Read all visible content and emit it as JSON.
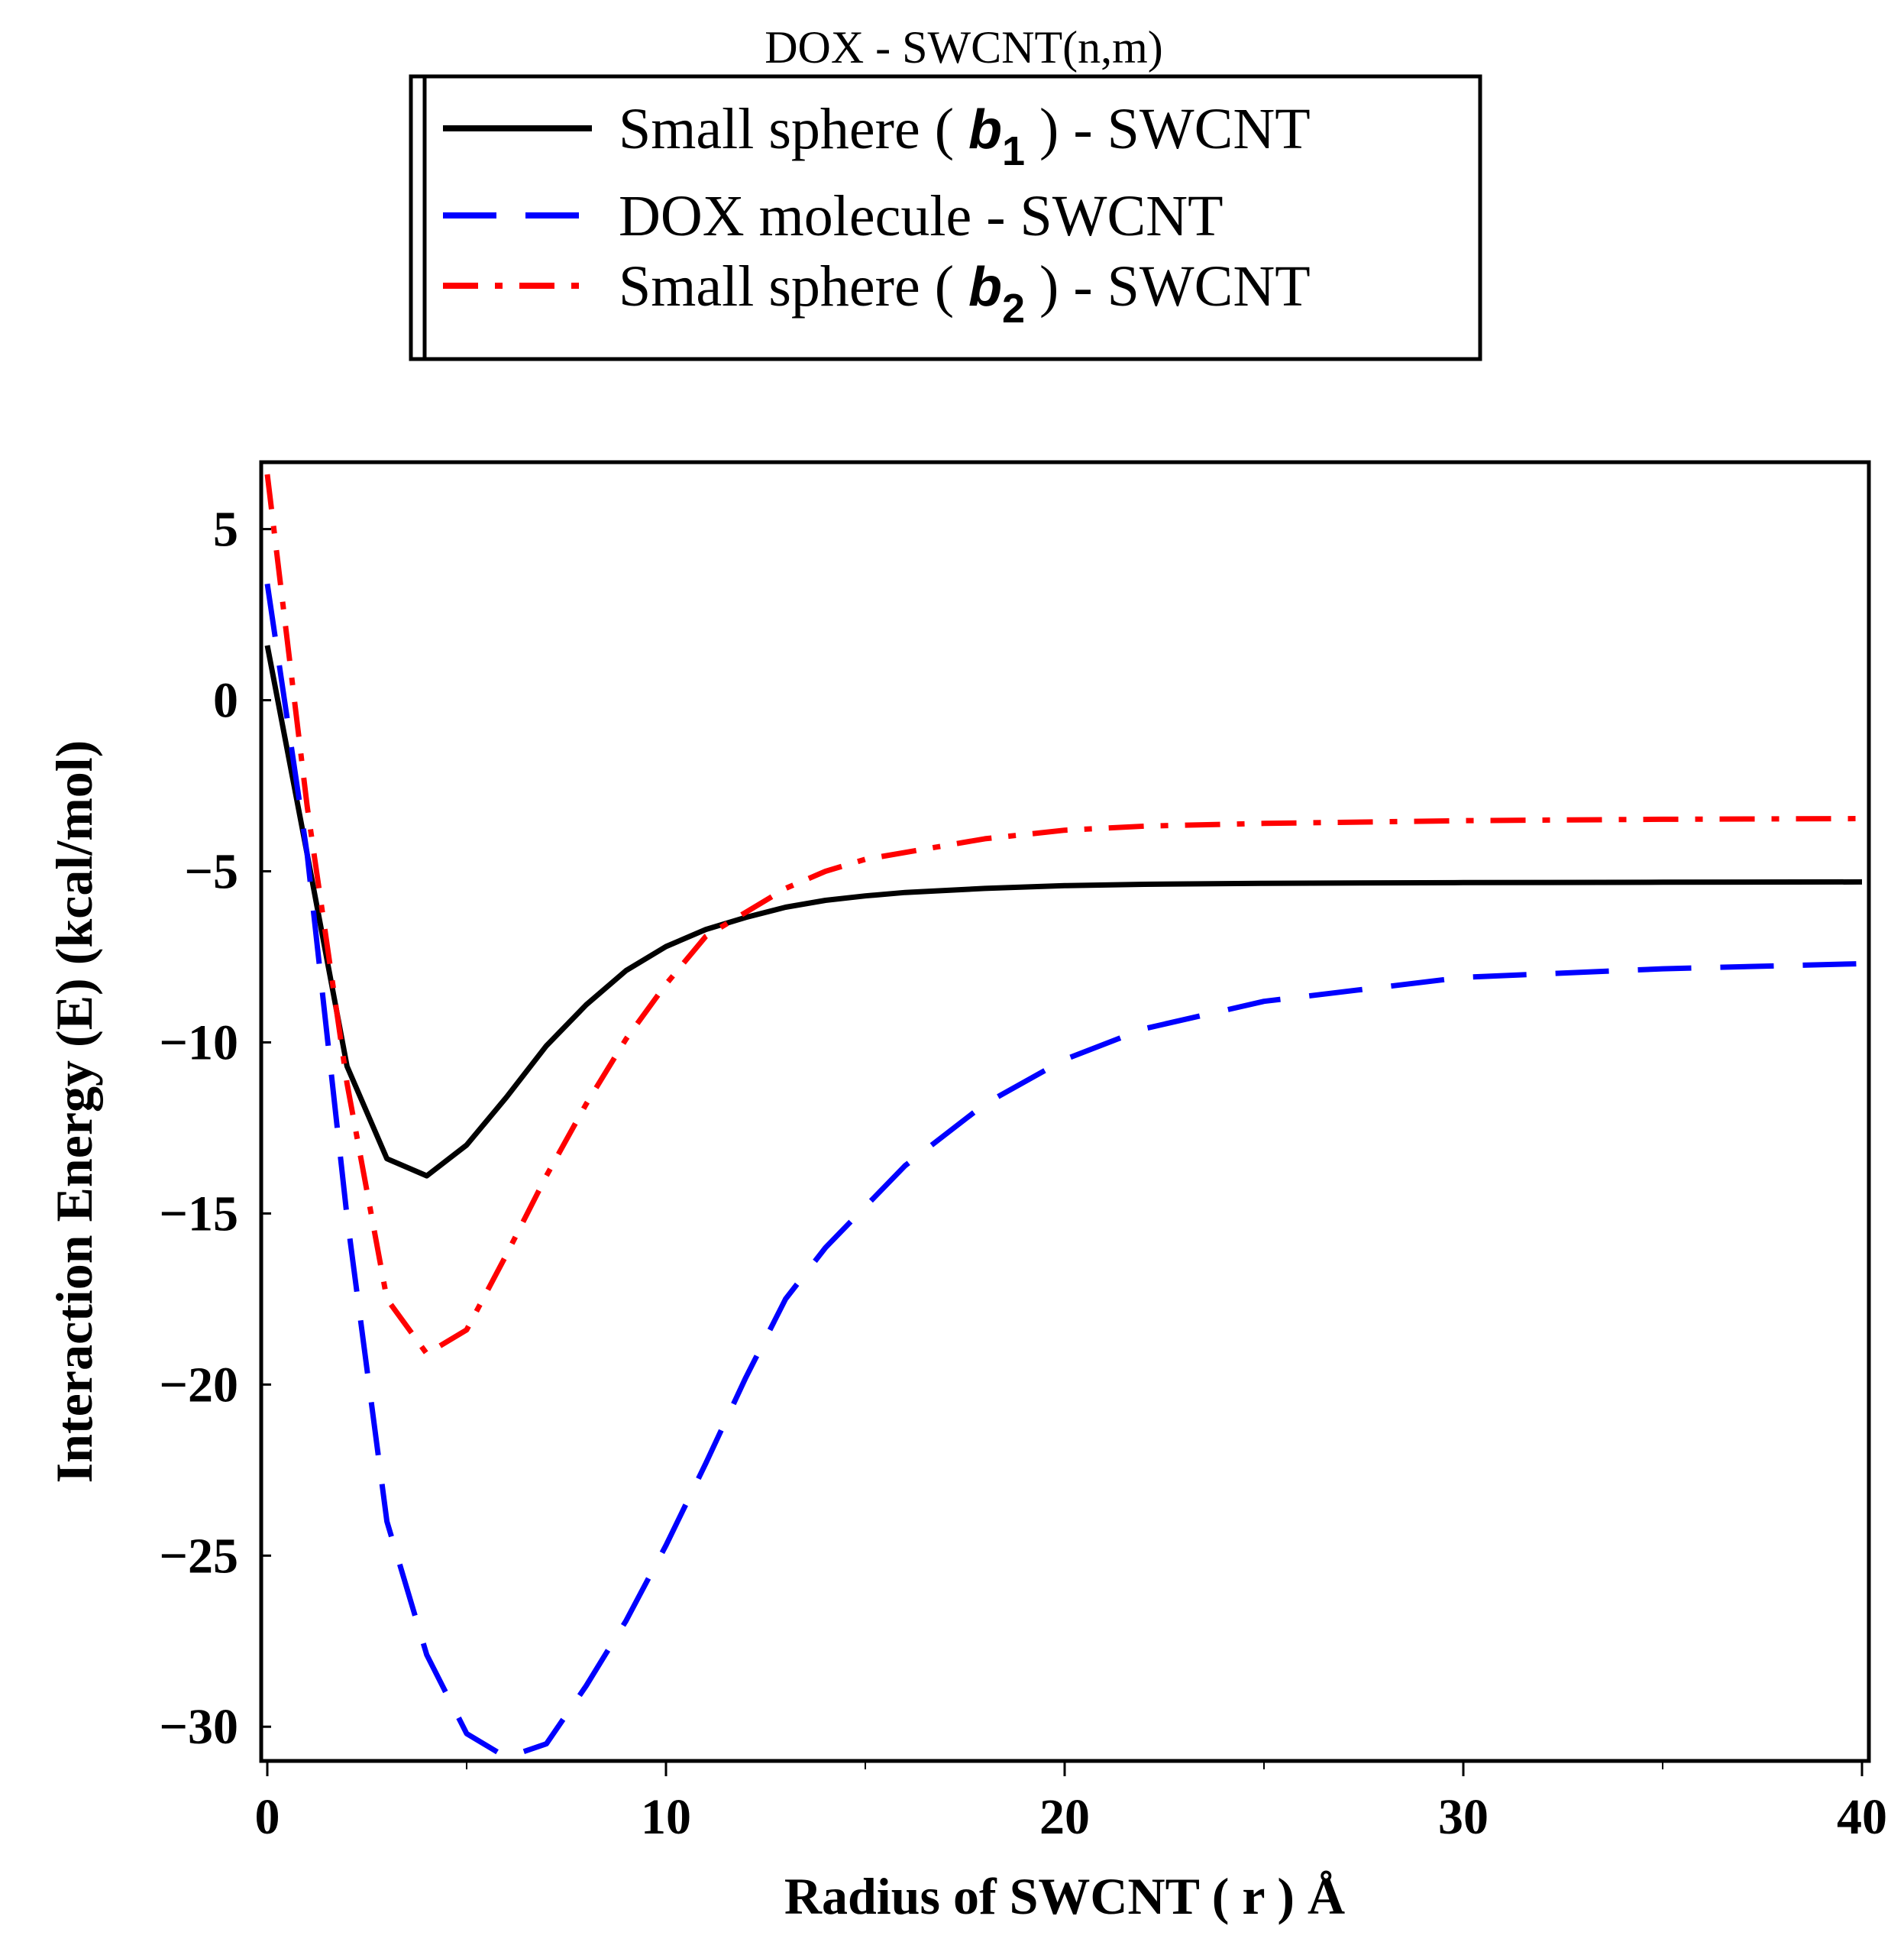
{
  "chart_data": {
    "type": "line",
    "title": "DOX - SWCNT(n,m)",
    "xlabel": "Radius of SWCNT ( r ) Å",
    "ylabel": "Interaction Energy (E) (kcal/mol)",
    "xlim": [
      0,
      40
    ],
    "ylim": [
      -31,
      7
    ],
    "xticks": [
      0,
      10,
      20,
      30,
      40
    ],
    "xtick_labels": [
      "0",
      "10",
      "20",
      "30",
      "40"
    ],
    "yticks": [
      5,
      0,
      -5,
      -10,
      -15,
      -20,
      -25,
      -30
    ],
    "ytick_labels": [
      "5",
      "0",
      "−5",
      "−10",
      "−15",
      "−20",
      "−25",
      "−30"
    ],
    "grid": false,
    "legend_position": "top-center",
    "legend": [
      {
        "name": "Small sphere ( b1 ) - SWCNT",
        "prefix": "Small sphere ( ",
        "symbol": "b",
        "subscript": "1",
        "suffix": " ) - SWCNT",
        "color": "#000000",
        "style": "solid"
      },
      {
        "name": "DOX molecule - SWCNT",
        "prefix": "DOX molecule - SWCNT",
        "symbol": "",
        "subscript": "",
        "suffix": "",
        "color": "#0000ff",
        "style": "dashed"
      },
      {
        "name": "Small sphere ( b2 ) - SWCNT",
        "prefix": "Small sphere ( ",
        "symbol": "b",
        "subscript": "2",
        "suffix": " ) - SWCNT",
        "color": "#ff0000",
        "style": "dashdot"
      }
    ],
    "series": [
      {
        "name": "Small sphere ( b1 ) - SWCNT",
        "color": "#000000",
        "style": "solid",
        "x": [
          0,
          1,
          2,
          3,
          4,
          5,
          6,
          7,
          8,
          9,
          10,
          11,
          12,
          13,
          14,
          15,
          16,
          18,
          20,
          22,
          25,
          30,
          35,
          40
        ],
        "y": [
          1.6,
          -4.5,
          -10.7,
          -13.4,
          -13.9,
          -13.0,
          -11.6,
          -10.1,
          -8.9,
          -7.9,
          -7.2,
          -6.7,
          -6.35,
          -6.05,
          -5.85,
          -5.72,
          -5.62,
          -5.5,
          -5.42,
          -5.38,
          -5.35,
          -5.33,
          -5.32,
          -5.31
        ]
      },
      {
        "name": "DOX molecule - SWCNT",
        "color": "#0000ff",
        "style": "dashed",
        "x": [
          0,
          1,
          2,
          3,
          4,
          5,
          6,
          7,
          8,
          9,
          10,
          11,
          12,
          13,
          14,
          15,
          16,
          18,
          20,
          22,
          25,
          30,
          35,
          40
        ],
        "y": [
          3.4,
          -4.5,
          -15.1,
          -24.0,
          -27.9,
          -30.2,
          -30.9,
          -30.5,
          -28.8,
          -26.9,
          -24.7,
          -22.3,
          -19.8,
          -17.5,
          -16.0,
          -14.8,
          -13.6,
          -11.8,
          -10.5,
          -9.6,
          -8.8,
          -8.1,
          -7.85,
          -7.7
        ]
      },
      {
        "name": "Small sphere ( b2 ) - SWCNT",
        "color": "#ff0000",
        "style": "dashdot",
        "x": [
          0,
          1,
          2,
          3,
          4,
          5,
          6,
          7,
          8,
          9,
          10,
          11,
          12,
          13,
          14,
          15,
          16,
          18,
          20,
          22,
          25,
          30,
          35,
          40
        ],
        "y": [
          6.6,
          -3.1,
          -11.2,
          -17.5,
          -19.1,
          -18.4,
          -16.2,
          -13.9,
          -11.8,
          -9.9,
          -8.3,
          -6.9,
          -6.2,
          -5.5,
          -5.0,
          -4.65,
          -4.45,
          -4.05,
          -3.8,
          -3.68,
          -3.6,
          -3.52,
          -3.48,
          -3.46
        ]
      }
    ]
  }
}
